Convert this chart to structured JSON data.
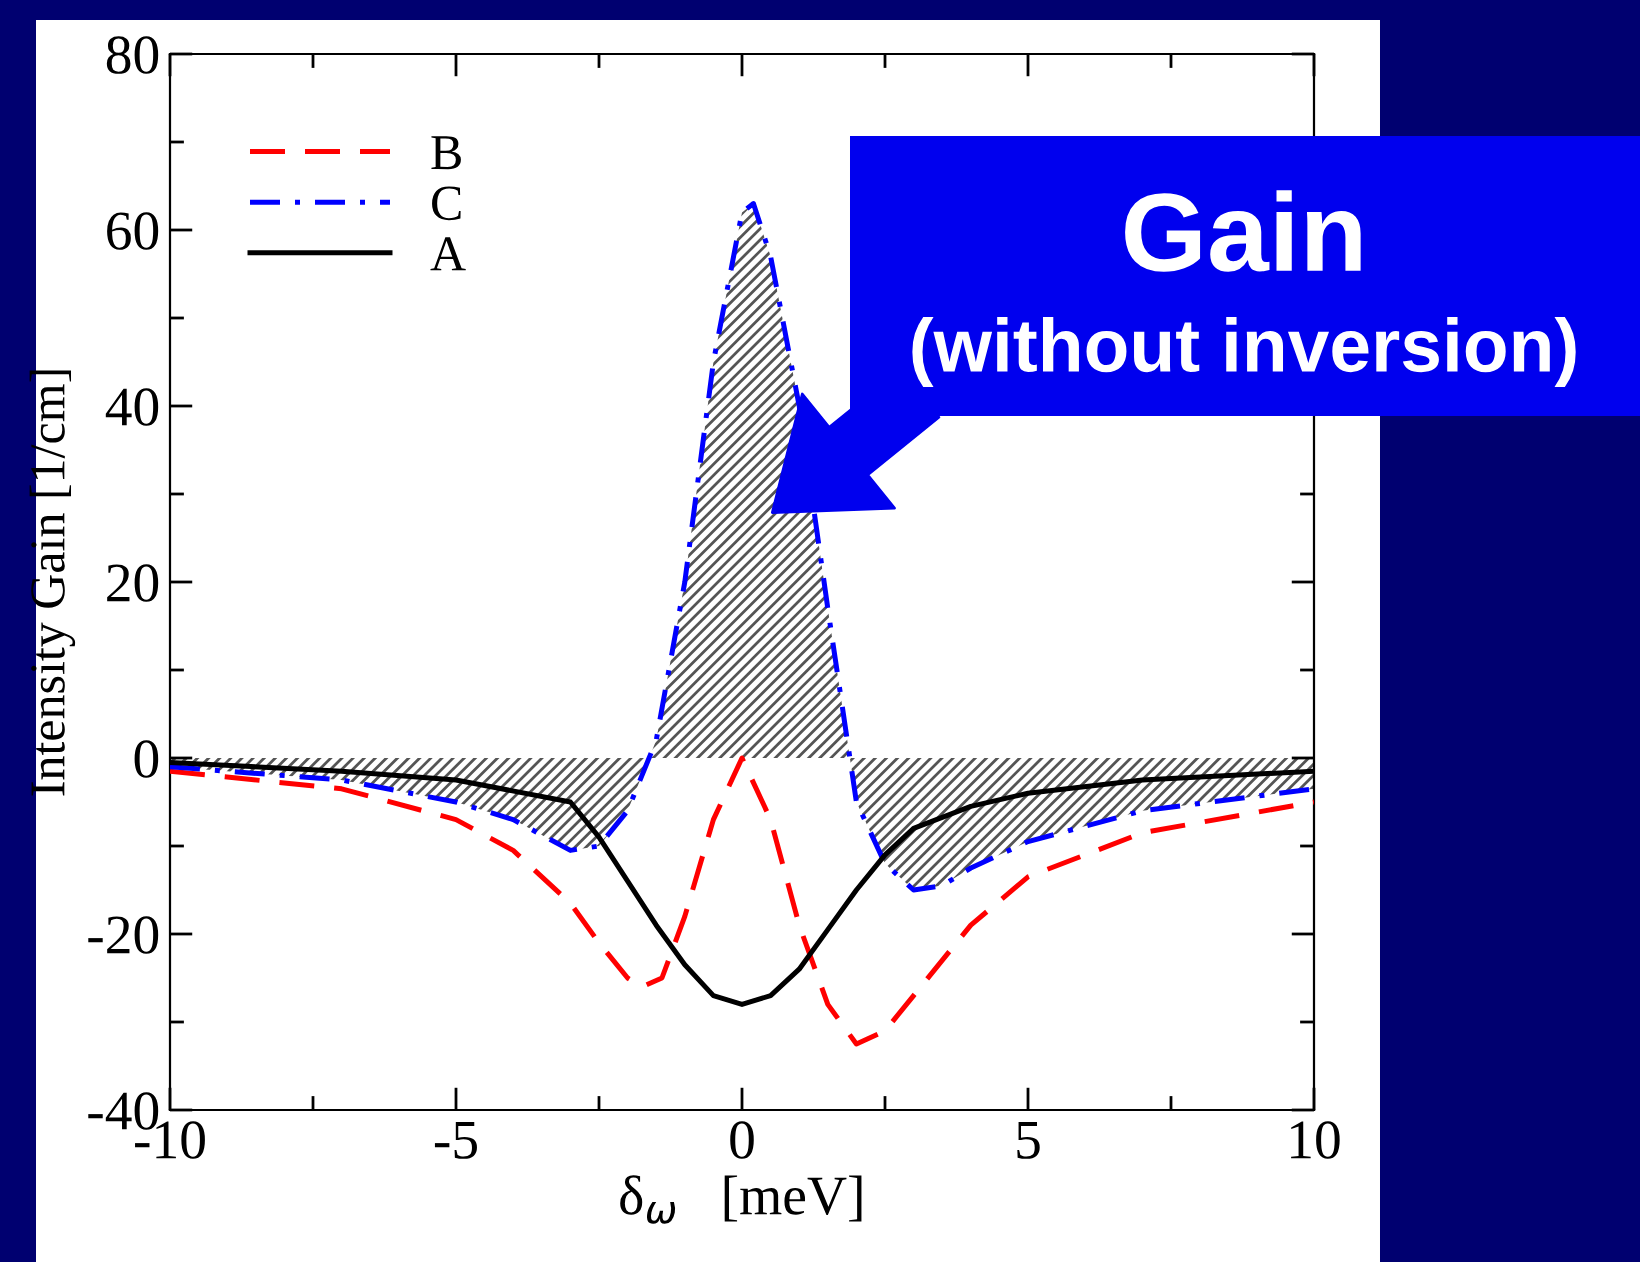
{
  "chart_data": {
    "type": "line",
    "xlabel": "δ$_{ω}$   [meV]",
    "ylabel": "Intensity Gain [1/cm]",
    "xlim": [
      -10,
      10
    ],
    "ylim": [
      -40,
      80
    ],
    "xticks": [
      -10,
      {
        "value": -7.5,
        "label": null
      },
      -5,
      {
        "value": -2.5,
        "label": null
      },
      0,
      {
        "value": 2.5,
        "label": null
      },
      5,
      {
        "value": 7.5,
        "label": null
      },
      10
    ],
    "yticks": [
      -40,
      {
        "value": -30,
        "label": null
      },
      -20,
      {
        "value": -10,
        "label": null
      },
      0,
      {
        "value": 10,
        "label": null
      },
      20,
      {
        "value": 30,
        "label": null
      },
      40,
      {
        "value": 50,
        "label": null
      },
      60,
      {
        "value": 70,
        "label": null
      },
      80
    ],
    "grid": false,
    "legend": "top left",
    "marker": "none",
    "series": [
      {
        "name": "B",
        "color": "#ff0000",
        "line_style": "dashed",
        "x": [
          -10,
          -7,
          -5,
          -4,
          -3,
          -2.5,
          -2,
          -1.75,
          -1.4,
          -1,
          -0.5,
          0,
          0.5,
          1,
          1.5,
          2,
          2.5,
          3,
          4,
          5,
          7,
          10
        ],
        "values": [
          -1.5,
          -3.5,
          -7,
          -10.5,
          -16.5,
          -21,
          -25,
          -26,
          -25,
          -18,
          -7,
          0,
          -7,
          -19,
          -28,
          -32.5,
          -31,
          -27,
          -19,
          -13.5,
          -8.5,
          -5
        ]
      },
      {
        "name": "C",
        "color": "#0000ff",
        "type": "area",
        "line_style": "dashdot",
        "x": [
          -10,
          -7,
          -5,
          -4,
          -3,
          -2.5,
          -2,
          -1.5,
          -1,
          -0.5,
          0,
          0.2,
          0.5,
          1,
          1.5,
          2,
          2.5,
          3,
          3.5,
          4,
          5,
          7,
          10
        ],
        "values": [
          -1,
          -2.5,
          -5,
          -7,
          -10.5,
          -10,
          -6,
          2,
          20,
          45,
          62,
          63,
          57,
          40,
          17,
          -5,
          -12,
          -15,
          -14.5,
          -12.5,
          -9.5,
          -6,
          -3.5
        ]
      },
      {
        "name": "A",
        "color": "#000000",
        "line_style": "solid",
        "x": [
          -10,
          -7,
          -5,
          -3,
          -2.5,
          -2,
          -1.5,
          -1,
          -0.5,
          0,
          0.5,
          1,
          1.5,
          2,
          2.5,
          3,
          4,
          5,
          7,
          10
        ],
        "values": [
          -0.5,
          -1.5,
          -2.5,
          -5,
          -9,
          -14,
          -19,
          -23.5,
          -27,
          -28,
          -27,
          -24,
          -19.5,
          -15,
          -11,
          -8,
          -5.5,
          -4,
          -2.5,
          -1.5
        ]
      }
    ],
    "annotations": [
      "Gain",
      "(without inversion)"
    ]
  }
}
